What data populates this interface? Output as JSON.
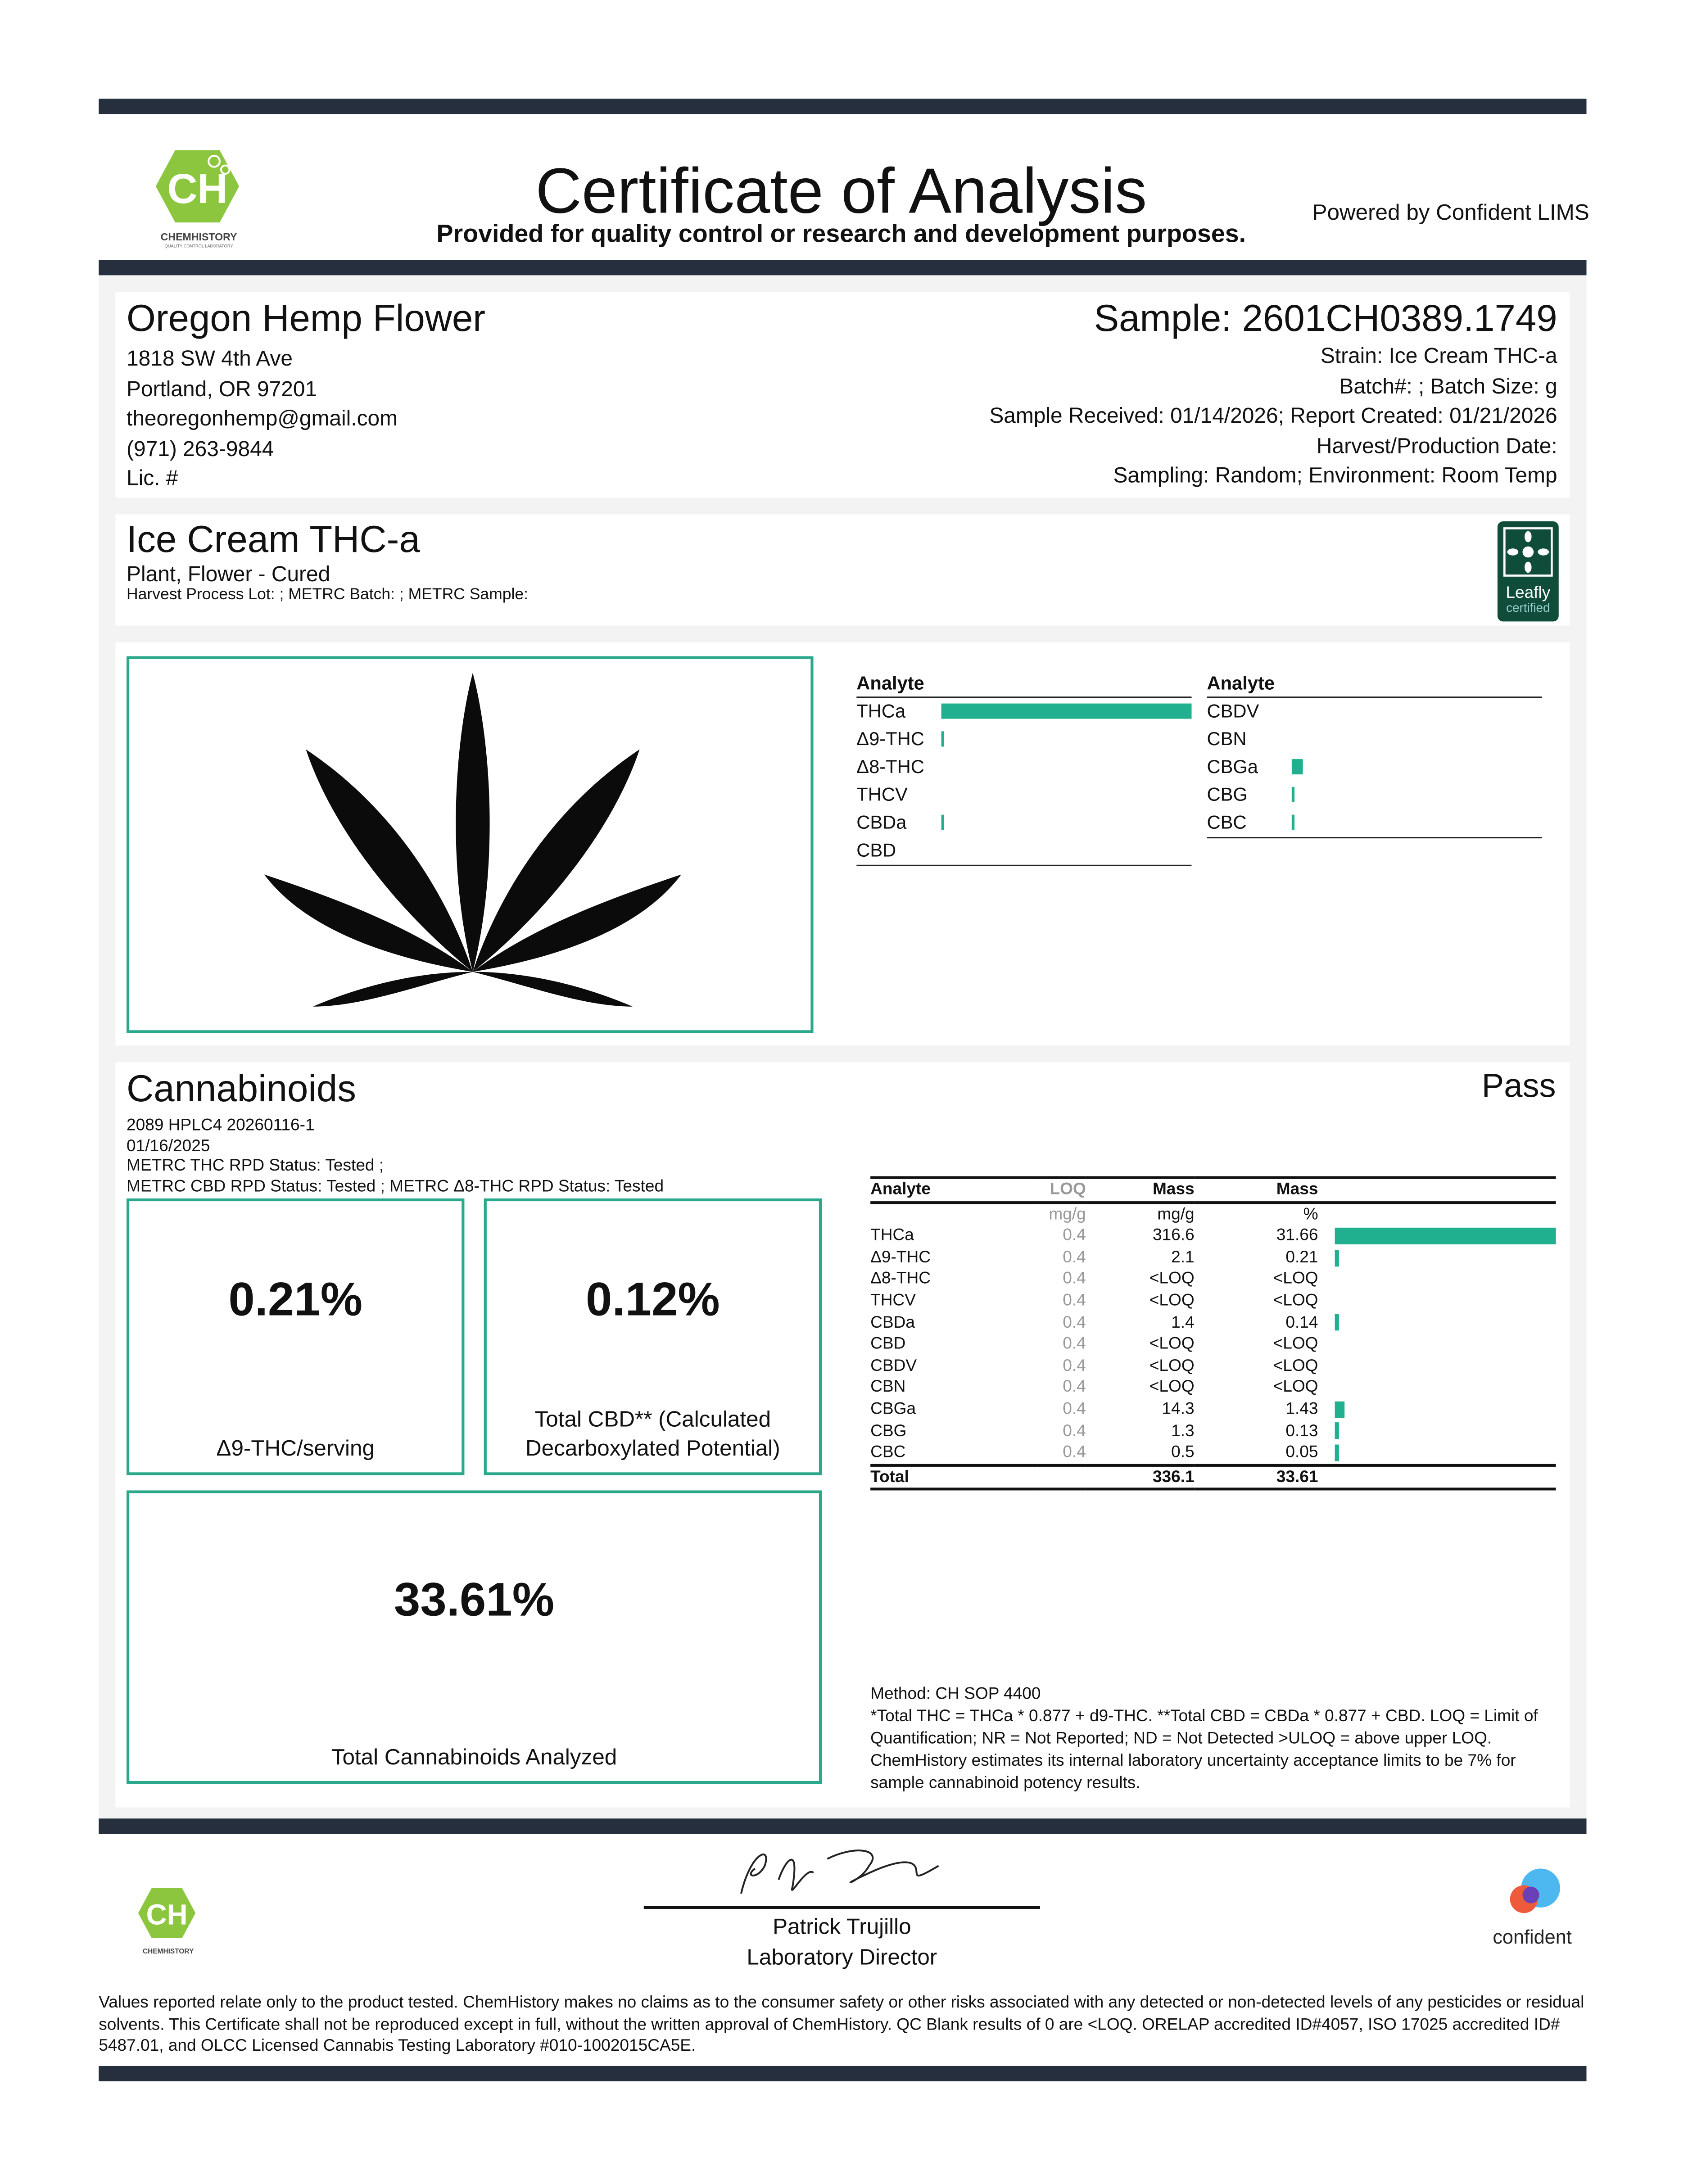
{
  "header": {
    "title": "Certificate of Analysis",
    "subtitle": "Provided for quality control or research and development purposes.",
    "powered_by": "Powered by Confident LIMS",
    "logo_text": "CHEMHISTORY",
    "logo_sub": "QUALITY CONTROL LABORATORY"
  },
  "client": {
    "name": "Oregon Hemp Flower",
    "address1": "1818 SW 4th Ave",
    "address2": "Portland, OR 97201",
    "email": "theoregonhemp@gmail.com",
    "phone": "(971) 263-9844",
    "license": "Lic. #"
  },
  "sample": {
    "id": "Sample: 2601CH0389.1749",
    "strain": "Strain: Ice Cream THC-a",
    "batch": "Batch#: ; Batch Size:  g",
    "dates": "Sample Received: 01/14/2026; Report Created: 01/21/2026",
    "harvest": "Harvest/Production Date:",
    "sampling": "Sampling: Random; Environment: Room Temp"
  },
  "product": {
    "name": "Ice Cream THC-a",
    "type": "Plant, Flower - Cured",
    "lots": "Harvest Process Lot: ; METRC Batch: ; METRC Sample:",
    "badge": "Leafly",
    "badge_sub": "certified"
  },
  "overview": {
    "header": "Analyte",
    "left": [
      {
        "name": "THCa",
        "pct": 31.66
      },
      {
        "name": "Δ9-THC",
        "pct": 0.21
      },
      {
        "name": "Δ8-THC",
        "pct": 0
      },
      {
        "name": "THCV",
        "pct": 0
      },
      {
        "name": "CBDa",
        "pct": 0.14
      },
      {
        "name": "CBD",
        "pct": 0
      }
    ],
    "right": [
      {
        "name": "CBDV",
        "pct": 0
      },
      {
        "name": "CBN",
        "pct": 0
      },
      {
        "name": "CBGa",
        "pct": 1.43
      },
      {
        "name": "CBG",
        "pct": 0.13
      },
      {
        "name": "CBC",
        "pct": 0.05
      }
    ]
  },
  "cannabinoids": {
    "title": "Cannabinoids",
    "status": "Pass",
    "run": "2089 HPLC4 20260116-1",
    "date": "01/16/2025",
    "rpd1": "METRC THC RPD Status: Tested ;",
    "rpd2": "METRC CBD RPD Status: Tested ; METRC Δ8-THC RPD Status: Tested",
    "box1": {
      "value": "0.21%",
      "label": "Δ9-THC/serving"
    },
    "box2": {
      "value": "0.12%",
      "label": "Total CBD** (Calculated Decarboxylated Potential)"
    },
    "box3": {
      "value": "33.61%",
      "label": "Total Cannabinoids Analyzed"
    },
    "table": {
      "headers": [
        "Analyte",
        "LOQ",
        "Mass",
        "Mass"
      ],
      "units": [
        "",
        "mg/g",
        "mg/g",
        "%"
      ],
      "rows": [
        [
          "THCa",
          "0.4",
          "316.6",
          "31.66"
        ],
        [
          "Δ9-THC",
          "0.4",
          "2.1",
          "0.21"
        ],
        [
          "Δ8-THC",
          "0.4",
          "<LOQ",
          "<LOQ"
        ],
        [
          "THCV",
          "0.4",
          "<LOQ",
          "<LOQ"
        ],
        [
          "CBDa",
          "0.4",
          "1.4",
          "0.14"
        ],
        [
          "CBD",
          "0.4",
          "<LOQ",
          "<LOQ"
        ],
        [
          "CBDV",
          "0.4",
          "<LOQ",
          "<LOQ"
        ],
        [
          "CBN",
          "0.4",
          "<LOQ",
          "<LOQ"
        ],
        [
          "CBGa",
          "0.4",
          "14.3",
          "1.43"
        ],
        [
          "CBG",
          "0.4",
          "1.3",
          "0.13"
        ],
        [
          "CBC",
          "0.4",
          "0.5",
          "0.05"
        ]
      ],
      "total": [
        "Total",
        "",
        "336.1",
        "33.61"
      ]
    },
    "method": "Method: CH SOP 4400",
    "notes": "*Total THC = THCa * 0.877 + d9-THC. **Total CBD = CBDa * 0.877 + CBD. LOQ = Limit of Quantification; NR = Not Reported; ND = Not Detected >ULOQ = above upper LOQ. ChemHistory estimates its internal laboratory uncertainty acceptance limits to be 7% for sample cannabinoid potency results."
  },
  "signature": {
    "name": "Patrick Trujillo",
    "role": "Laboratory Director",
    "confident": "confident"
  },
  "footer": "Values reported relate only to the product tested. ChemHistory makes no claims as to the consumer safety or other risks associated with any detected or non-detected levels of any pesticides or residual solvents. This Certificate shall not be reproduced except in full, without the written approval of ChemHistory. QC Blank results of 0 are <LOQ.  ORELAP accredited ID#4057, ISO 17025 accredited ID# 5487.01, and OLCC Licensed Cannabis Testing Laboratory #010-1002015CA5E.",
  "colors": {
    "accent": "#20b08f",
    "bar": "#252f3d",
    "logo": "#8cc63f",
    "leafly": "#0f4c3a"
  }
}
